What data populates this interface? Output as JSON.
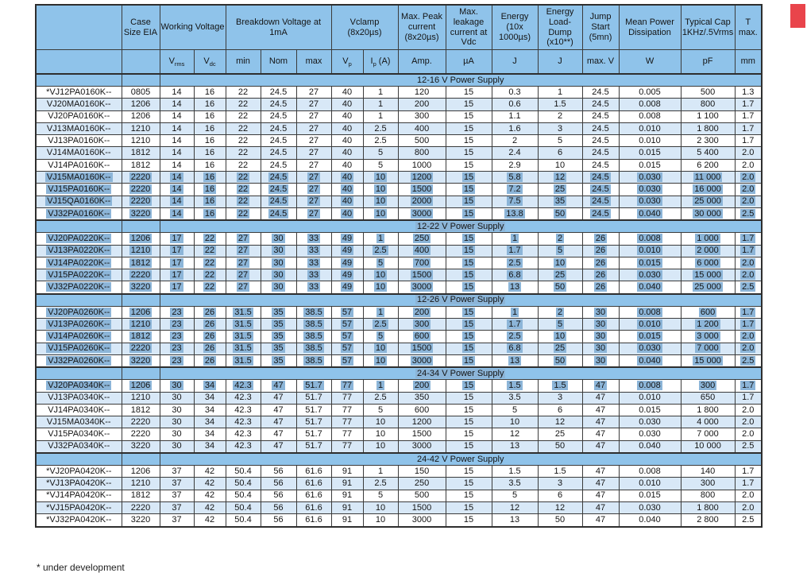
{
  "colors": {
    "hdr": "#8fc3ea",
    "alt": "#d8e8f7",
    "hl": "#8cb5d8",
    "red": "#e9444b",
    "border": "#3b3b3b",
    "text": "#141414"
  },
  "page": {
    "footnote": "* under development"
  },
  "table": {
    "groups": [
      {
        "label": ""
      },
      {
        "label": "Case Size EIA"
      },
      {
        "label": "Working Voltage"
      },
      {
        "label": "Breakdown Voltage at 1mA"
      },
      {
        "label": "Vclamp (8x20µs)"
      },
      {
        "label": "Max. Peak current (8x20µs)"
      },
      {
        "label": "Max. leakage current at Vdc"
      },
      {
        "label": "Energy (10x 1000µs)"
      },
      {
        "label": "Energy Load-Dump (x10**)"
      },
      {
        "label": "Jump Start (5mn)"
      },
      {
        "label": "Mean Power Dissipation"
      },
      {
        "label": "Typical Cap 1KHz/.5Vrms"
      },
      {
        "label": "T max."
      }
    ],
    "units": [
      {
        "t": ""
      },
      {
        "t": ""
      },
      {
        "t": "V",
        "sub": "rms"
      },
      {
        "t": "V",
        "sub": "dc"
      },
      {
        "t": "min"
      },
      {
        "t": "Nom"
      },
      {
        "t": "max"
      },
      {
        "t": "V",
        "sub": "p"
      },
      {
        "t": "I",
        "sub": "p",
        "suf": " (A)"
      },
      {
        "t": "Amp."
      },
      {
        "t": "µA"
      },
      {
        "t": "J"
      },
      {
        "t": "J"
      },
      {
        "t": "max. V"
      },
      {
        "t": "W"
      },
      {
        "t": "pF"
      },
      {
        "t": "mm"
      }
    ],
    "sections": [
      {
        "title": "12-16 V Power Supply",
        "title_hl": false,
        "rows": [
          {
            "hl": false,
            "cells": [
              "*VJ12PA0160K--",
              "0805",
              "14",
              "16",
              "22",
              "24.5",
              "27",
              "40",
              "1",
              "120",
              "15",
              "0.3",
              "1",
              "24.5",
              "0.005",
              "500",
              "1.3"
            ]
          },
          {
            "hl": false,
            "cells": [
              "VJ20MA0160K--",
              "1206",
              "14",
              "16",
              "22",
              "24.5",
              "27",
              "40",
              "1",
              "200",
              "15",
              "0.6",
              "1.5",
              "24.5",
              "0.008",
              "800",
              "1.7"
            ]
          },
          {
            "hl": false,
            "cells": [
              "VJ20PA0160K--",
              "1206",
              "14",
              "16",
              "22",
              "24.5",
              "27",
              "40",
              "1",
              "300",
              "15",
              "1.1",
              "2",
              "24.5",
              "0.008",
              "1 100",
              "1.7"
            ]
          },
          {
            "hl": false,
            "cells": [
              "VJ13MA0160K--",
              "1210",
              "14",
              "16",
              "22",
              "24.5",
              "27",
              "40",
              "2.5",
              "400",
              "15",
              "1.6",
              "3",
              "24.5",
              "0.010",
              "1 800",
              "1.7"
            ]
          },
          {
            "hl": false,
            "cells": [
              "VJ13PA0160K--",
              "1210",
              "14",
              "16",
              "22",
              "24.5",
              "27",
              "40",
              "2.5",
              "500",
              "15",
              "2",
              "5",
              "24.5",
              "0.010",
              "2 300",
              "1.7"
            ]
          },
          {
            "hl": false,
            "cells": [
              "VJ14MA0160K--",
              "1812",
              "14",
              "16",
              "22",
              "24.5",
              "27",
              "40",
              "5",
              "800",
              "15",
              "2.4",
              "6",
              "24.5",
              "0.015",
              "5 400",
              "2.0"
            ]
          },
          {
            "hl": false,
            "cells": [
              "VJ14PA0160K--",
              "1812",
              "14",
              "16",
              "22",
              "24.5",
              "27",
              "40",
              "5",
              "1000",
              "15",
              "2.9",
              "10",
              "24.5",
              "0.015",
              "6 200",
              "2.0"
            ]
          },
          {
            "hl": true,
            "cells": [
              "VJ15MA0160K--",
              "2220",
              "14",
              "16",
              "22",
              "24.5",
              "27",
              "40",
              "10",
              "1200",
              "15",
              "5.8",
              "12",
              "24.5",
              "0.030",
              "11 000",
              "2.0"
            ]
          },
          {
            "hl": true,
            "cells": [
              "VJ15PA0160K--",
              "2220",
              "14",
              "16",
              "22",
              "24.5",
              "27",
              "40",
              "10",
              "1500",
              "15",
              "7.2",
              "25",
              "24.5",
              "0.030",
              "16 000",
              "2.0"
            ]
          },
          {
            "hl": true,
            "cells": [
              "VJ15QA0160K--",
              "2220",
              "14",
              "16",
              "22",
              "24.5",
              "27",
              "40",
              "10",
              "2000",
              "15",
              "7.5",
              "35",
              "24.5",
              "0.030",
              "25 000",
              "2.0"
            ]
          },
          {
            "hl": true,
            "cells": [
              "VJ32PA0160K--",
              "3220",
              "14",
              "16",
              "22",
              "24.5",
              "27",
              "40",
              "10",
              "3000",
              "15",
              "13.8",
              "50",
              "24.5",
              "0.040",
              "30 000",
              "2.5"
            ]
          }
        ]
      },
      {
        "title": "12-22 V Power Supply",
        "title_hl": true,
        "rows": [
          {
            "hl": true,
            "cells": [
              "VJ20PA0220K--",
              "1206",
              "17",
              "22",
              "27",
              "30",
              "33",
              "49",
              "1",
              "250",
              "15",
              "1",
              "2",
              "26",
              "0.008",
              "1 000",
              "1.7"
            ]
          },
          {
            "hl": true,
            "cells": [
              "VJ13PA0220K--",
              "1210",
              "17",
              "22",
              "27",
              "30",
              "33",
              "49",
              "2.5",
              "400",
              "15",
              "1.7",
              "5",
              "26",
              "0.010",
              "2 000",
              "1.7"
            ]
          },
          {
            "hl": true,
            "cells": [
              "VJ14PA0220K--",
              "1812",
              "17",
              "22",
              "27",
              "30",
              "33",
              "49",
              "5",
              "700",
              "15",
              "2.5",
              "10",
              "26",
              "0.015",
              "6 000",
              "2.0"
            ]
          },
          {
            "hl": true,
            "cells": [
              "VJ15PA0220K--",
              "2220",
              "17",
              "22",
              "27",
              "30",
              "33",
              "49",
              "10",
              "1500",
              "15",
              "6.8",
              "25",
              "26",
              "0.030",
              "15 000",
              "2.0"
            ]
          },
          {
            "hl": true,
            "cells": [
              "VJ32PA0220K--",
              "3220",
              "17",
              "22",
              "27",
              "30",
              "33",
              "49",
              "10",
              "3000",
              "15",
              "13",
              "50",
              "26",
              "0.040",
              "25 000",
              "2.5"
            ]
          }
        ]
      },
      {
        "title": "12-26 V Power Supply",
        "title_hl": true,
        "rows": [
          {
            "hl": true,
            "cells": [
              "VJ20PA0260K--",
              "1206",
              "23",
              "26",
              "31.5",
              "35",
              "38.5",
              "57",
              "1",
              "200",
              "15",
              "1",
              "2",
              "30",
              "0.008",
              "600",
              "1.7"
            ]
          },
          {
            "hl": true,
            "cells": [
              "VJ13PA0260K--",
              "1210",
              "23",
              "26",
              "31.5",
              "35",
              "38.5",
              "57",
              "2.5",
              "300",
              "15",
              "1.7",
              "5",
              "30",
              "0.010",
              "1 200",
              "1.7"
            ]
          },
          {
            "hl": true,
            "cells": [
              "VJ14PA0260K--",
              "1812",
              "23",
              "26",
              "31.5",
              "35",
              "38.5",
              "57",
              "5",
              "600",
              "15",
              "2.5",
              "10",
              "30",
              "0.015",
              "3 000",
              "2.0"
            ]
          },
          {
            "hl": true,
            "cells": [
              "VJ15PA0260K--",
              "2220",
              "23",
              "26",
              "31.5",
              "35",
              "38.5",
              "57",
              "10",
              "1500",
              "15",
              "6.8",
              "25",
              "30",
              "0.030",
              "7 000",
              "2.0"
            ]
          },
          {
            "hl": true,
            "cells": [
              "VJ32PA0260K--",
              "3220",
              "23",
              "26",
              "31.5",
              "35",
              "38.5",
              "57",
              "10",
              "3000",
              "15",
              "13",
              "50",
              "30",
              "0.040",
              "15 000",
              "2.5"
            ]
          }
        ]
      },
      {
        "title": "24-34 V Power Supply",
        "title_hl": true,
        "rows": [
          {
            "hl": true,
            "cells": [
              "VJ20PA0340K--",
              "1206",
              "30",
              "34",
              "42.3",
              "47",
              "51.7",
              "77",
              "1",
              "200",
              "15",
              "1.5",
              "1.5",
              "47",
              "0.008",
              "300",
              "1.7"
            ]
          },
          {
            "hl": false,
            "cells": [
              "VJ13PA0340K--",
              "1210",
              "30",
              "34",
              "42.3",
              "47",
              "51.7",
              "77",
              "2.5",
              "350",
              "15",
              "3.5",
              "3",
              "47",
              "0.010",
              "650",
              "1.7"
            ]
          },
          {
            "hl": false,
            "cells": [
              "VJ14PA0340K--",
              "1812",
              "30",
              "34",
              "42.3",
              "47",
              "51.7",
              "77",
              "5",
              "600",
              "15",
              "5",
              "6",
              "47",
              "0.015",
              "1 800",
              "2.0"
            ]
          },
          {
            "hl": false,
            "cells": [
              "VJ15MA0340K--",
              "2220",
              "30",
              "34",
              "42.3",
              "47",
              "51.7",
              "77",
              "10",
              "1200",
              "15",
              "10",
              "12",
              "47",
              "0.030",
              "4 000",
              "2.0"
            ]
          },
          {
            "hl": false,
            "cells": [
              "VJ15PA0340K--",
              "2220",
              "30",
              "34",
              "42.3",
              "47",
              "51.7",
              "77",
              "10",
              "1500",
              "15",
              "12",
              "25",
              "47",
              "0.030",
              "7 000",
              "2.0"
            ]
          },
          {
            "hl": false,
            "cells": [
              "VJ32PA0340K--",
              "3220",
              "30",
              "34",
              "42.3",
              "47",
              "51.7",
              "77",
              "10",
              "3000",
              "15",
              "13",
              "50",
              "47",
              "0.040",
              "10 000",
              "2.5"
            ]
          }
        ]
      },
      {
        "title": "24-42 V Power Supply",
        "title_hl": false,
        "rows": [
          {
            "hl": false,
            "cells": [
              "*VJ20PA0420K--",
              "1206",
              "37",
              "42",
              "50.4",
              "56",
              "61.6",
              "91",
              "1",
              "150",
              "15",
              "1.5",
              "1.5",
              "47",
              "0.008",
              "140",
              "1.7"
            ]
          },
          {
            "hl": false,
            "cells": [
              "*VJ13PA0420K--",
              "1210",
              "37",
              "42",
              "50.4",
              "56",
              "61.6",
              "91",
              "2.5",
              "250",
              "15",
              "3.5",
              "3",
              "47",
              "0.010",
              "300",
              "1.7"
            ]
          },
          {
            "hl": false,
            "cells": [
              "*VJ14PA0420K--",
              "1812",
              "37",
              "42",
              "50.4",
              "56",
              "61.6",
              "91",
              "5",
              "500",
              "15",
              "5",
              "6",
              "47",
              "0.015",
              "800",
              "2.0"
            ]
          },
          {
            "hl": false,
            "cells": [
              "*VJ15PA0420K--",
              "2220",
              "37",
              "42",
              "50.4",
              "56",
              "61.6",
              "91",
              "10",
              "1500",
              "15",
              "12",
              "12",
              "47",
              "0.030",
              "1 800",
              "2.0"
            ]
          },
          {
            "hl": false,
            "cells": [
              "*VJ32PA0420K--",
              "3220",
              "37",
              "42",
              "50.4",
              "56",
              "61.6",
              "91",
              "10",
              "3000",
              "15",
              "13",
              "50",
              "47",
              "0.040",
              "2 800",
              "2.5"
            ]
          }
        ]
      }
    ]
  }
}
